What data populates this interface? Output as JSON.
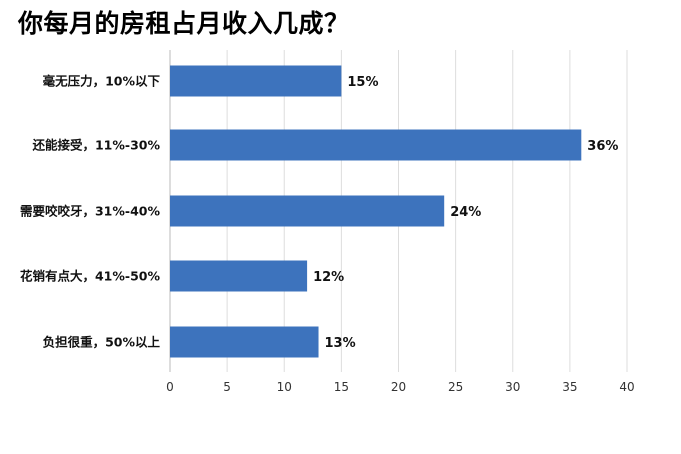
{
  "chart_data": {
    "type": "bar",
    "orientation": "horizontal",
    "title": "你每月的房租占月收入几成？",
    "categories": [
      "毫无压力，10%以下",
      "还能接受，11%-30%",
      "需要咬咬牙，31%-40%",
      "花销有点大，41%-50%",
      "负担很重，50%以上"
    ],
    "values": [
      15,
      36,
      24,
      12,
      13
    ],
    "value_labels": [
      "15%",
      "36%",
      "24%",
      "12%",
      "13%"
    ],
    "xlim": [
      0,
      40
    ],
    "xticks": [
      0,
      5,
      10,
      15,
      20,
      25,
      30,
      35,
      40
    ],
    "xtick_labels": [
      "0",
      "5",
      "10",
      "15",
      "20",
      "25",
      "30",
      "35",
      "40"
    ],
    "xlabel": "",
    "ylabel": "",
    "grid": "vertical",
    "legend": "none",
    "bar_color": "#3d73bd",
    "grid_color": "#dddddd"
  }
}
